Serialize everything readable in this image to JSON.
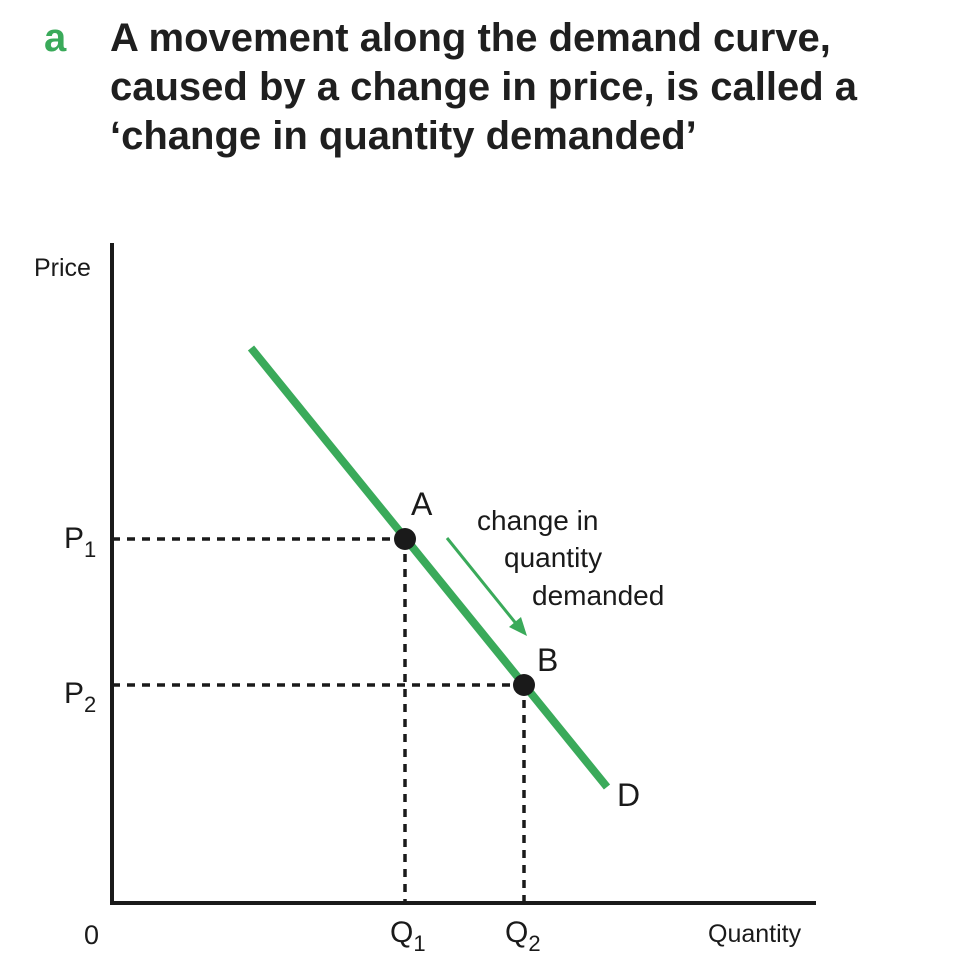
{
  "panel_letter": "a",
  "caption_lines": [
    "A movement along the demand curve,",
    "caused by a change in price, is called a",
    "‘change in quantity demanded’"
  ],
  "axes": {
    "y_label": "Price",
    "x_label": "Quantity",
    "origin_label": "0"
  },
  "prices": [
    {
      "base": "P",
      "sub": "1"
    },
    {
      "base": "P",
      "sub": "2"
    }
  ],
  "quantities": [
    {
      "base": "Q",
      "sub": "1"
    },
    {
      "base": "Q",
      "sub": "2"
    }
  ],
  "points": {
    "a_label": "A",
    "b_label": "B"
  },
  "curve_label": "D",
  "annotation_lines": [
    "change in",
    "quantity",
    "demanded"
  ],
  "colors": {
    "accent": "#3aaa5a",
    "axis": "#1a1a1a",
    "point": "#1a1a1a"
  }
}
